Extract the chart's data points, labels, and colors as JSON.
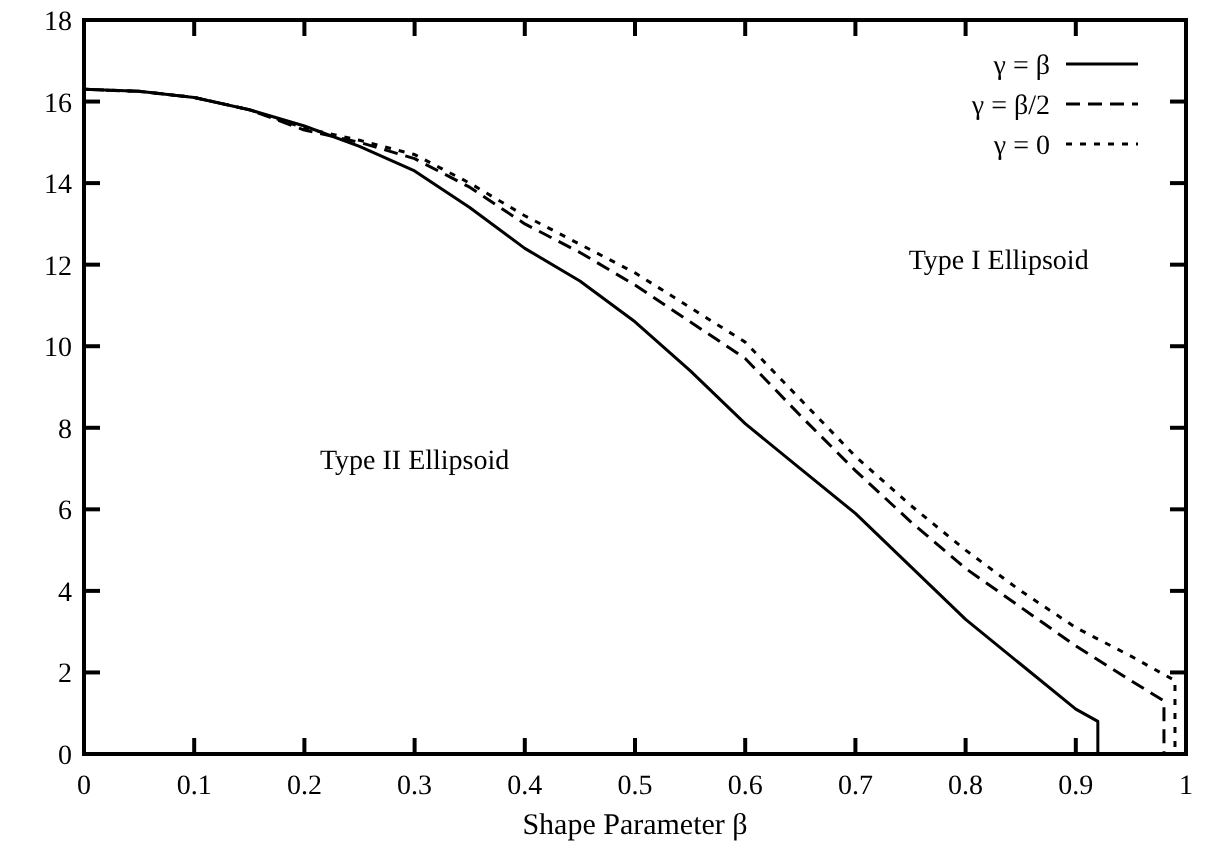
{
  "chart_data": {
    "type": "line",
    "xlabel": "Shape Parameter β",
    "xlim": [
      0,
      1
    ],
    "ylim": [
      0,
      18
    ],
    "xticks": [
      0,
      0.1,
      0.2,
      0.3,
      0.4,
      0.5,
      0.6,
      0.7,
      0.8,
      0.9,
      1
    ],
    "yticks": [
      0,
      2,
      4,
      6,
      8,
      10,
      12,
      14,
      16,
      18
    ],
    "grid": false,
    "legend": "top right",
    "annotations": [
      "Type I Ellipsoid",
      "Type II Ellipsoid"
    ],
    "series": [
      {
        "name": "γ = β",
        "color": "#000000",
        "line_style": "solid",
        "x": [
          0,
          0.05,
          0.1,
          0.15,
          0.2,
          0.25,
          0.3,
          0.35,
          0.4,
          0.45,
          0.5,
          0.55,
          0.6,
          0.65,
          0.7,
          0.75,
          0.8,
          0.85,
          0.9,
          0.92,
          0.92
        ],
        "values": [
          16.3,
          16.25,
          16.1,
          15.8,
          15.4,
          14.9,
          14.3,
          13.4,
          12.4,
          11.6,
          10.6,
          9.4,
          8.1,
          7.0,
          5.9,
          4.6,
          3.3,
          2.2,
          1.1,
          0.8,
          0
        ]
      },
      {
        "name": "γ = β/2",
        "color": "#000000",
        "line_style": "dashed",
        "x": [
          0,
          0.05,
          0.1,
          0.15,
          0.2,
          0.25,
          0.3,
          0.35,
          0.4,
          0.45,
          0.5,
          0.55,
          0.6,
          0.65,
          0.7,
          0.75,
          0.8,
          0.85,
          0.9,
          0.95,
          0.98,
          0.98
        ],
        "values": [
          16.3,
          16.25,
          16.1,
          15.8,
          15.3,
          15.0,
          14.6,
          13.9,
          13.0,
          12.3,
          11.5,
          10.6,
          9.7,
          8.3,
          6.95,
          5.7,
          4.55,
          3.6,
          2.65,
          1.8,
          1.3,
          0
        ]
      },
      {
        "name": "γ = 0",
        "color": "#000000",
        "line_style": "dotted",
        "x": [
          0,
          0.05,
          0.1,
          0.15,
          0.2,
          0.25,
          0.3,
          0.35,
          0.4,
          0.45,
          0.5,
          0.55,
          0.6,
          0.65,
          0.7,
          0.75,
          0.8,
          0.85,
          0.9,
          0.95,
          0.99,
          0.99
        ],
        "values": [
          16.3,
          16.25,
          16.1,
          15.8,
          15.35,
          15.05,
          14.7,
          14.0,
          13.2,
          12.5,
          11.8,
          10.95,
          10.1,
          8.7,
          7.3,
          6.1,
          5.0,
          4.0,
          3.1,
          2.4,
          1.8,
          0
        ]
      }
    ]
  }
}
